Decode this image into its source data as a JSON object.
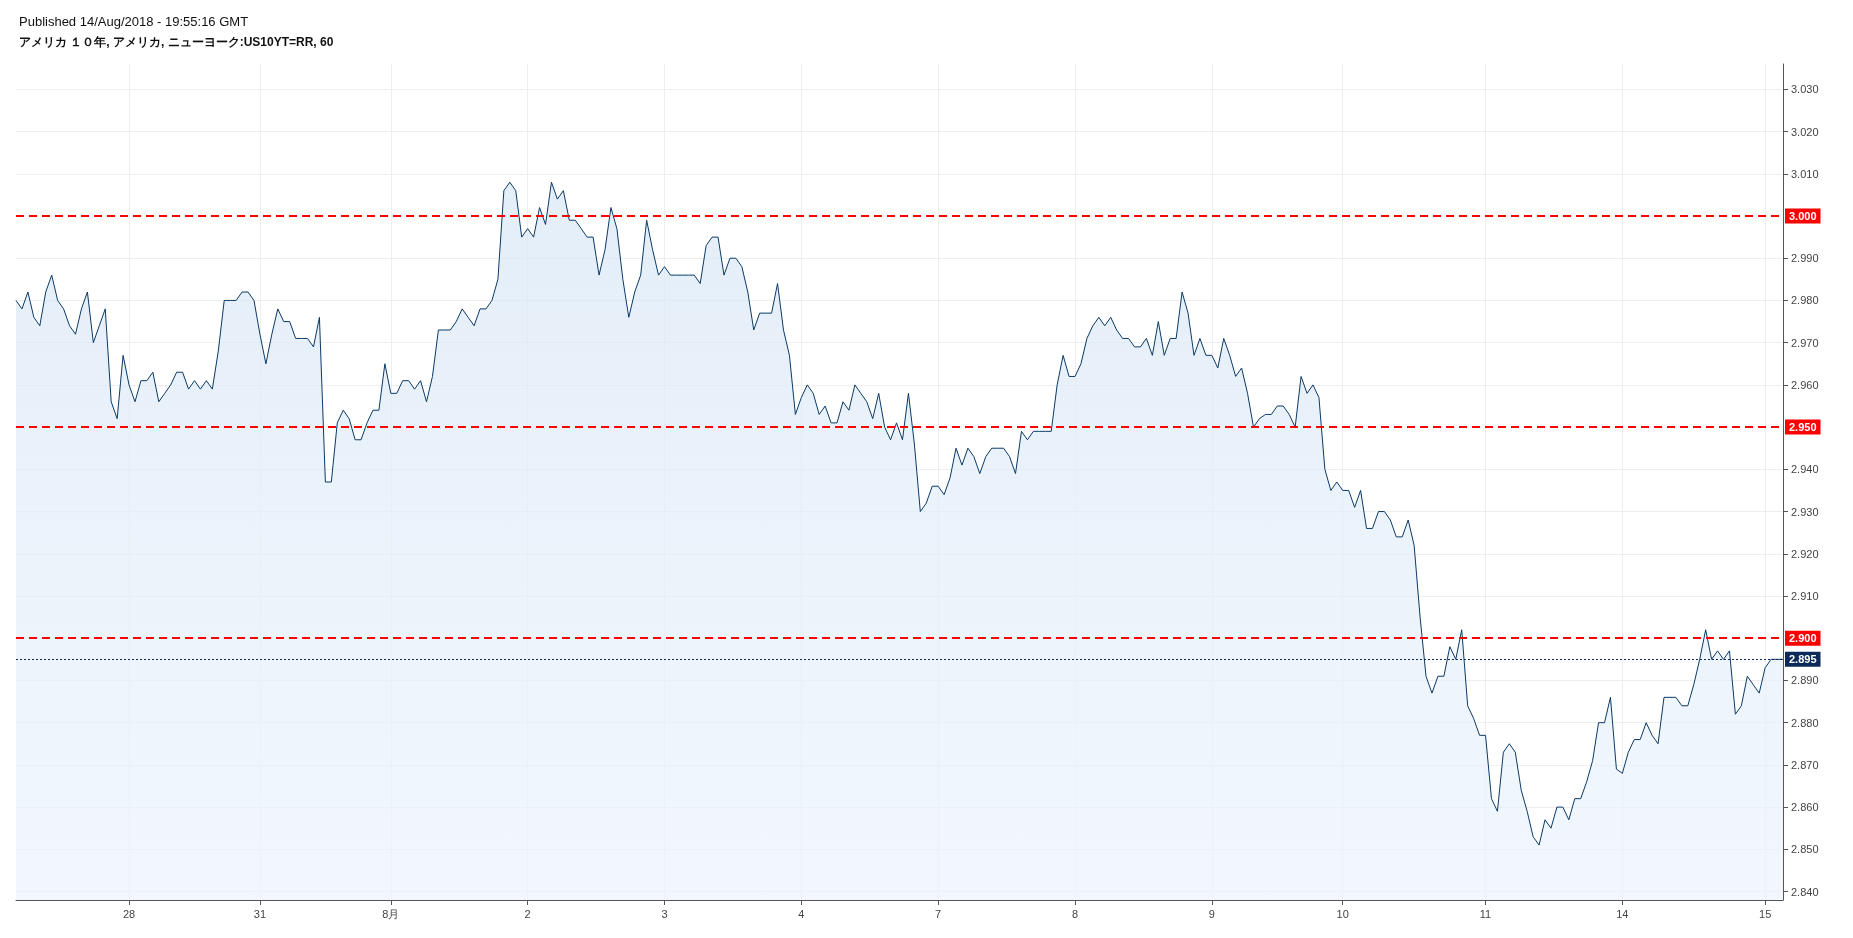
{
  "chart_data": {
    "type": "area",
    "title": "Published 14/Aug/2018 - 19:55:16 GMT",
    "subtitle": "アメリカ １０年, アメリカ, ニューヨーク:US10YT=RR, 60",
    "series": [
      {
        "color": "#0b3a66",
        "values": [
          2.98,
          2.978,
          2.982,
          2.976,
          2.974,
          2.982,
          2.986,
          2.98,
          2.978,
          2.974,
          2.972,
          2.978,
          2.982,
          2.97,
          2.974,
          2.978,
          2.956,
          2.952,
          2.967,
          2.96,
          2.956,
          2.961,
          2.961,
          2.963,
          2.956,
          2.958,
          2.96,
          2.963,
          2.963,
          2.959,
          2.961,
          2.959,
          2.961,
          2.959,
          2.968,
          2.98,
          2.98,
          2.98,
          2.982,
          2.982,
          2.98,
          2.972,
          2.965,
          2.972,
          2.978,
          2.975,
          2.975,
          2.971,
          2.971,
          2.971,
          2.969,
          2.976,
          2.937,
          2.937,
          2.951,
          2.954,
          2.952,
          2.947,
          2.947,
          2.951,
          2.954,
          2.954,
          2.965,
          2.958,
          2.958,
          2.961,
          2.961,
          2.959,
          2.961,
          2.956,
          2.962,
          2.973,
          2.973,
          2.973,
          2.975,
          2.978,
          2.976,
          2.974,
          2.978,
          2.978,
          2.98,
          2.985,
          3.006,
          3.008,
          3.006,
          2.995,
          2.997,
          2.995,
          3.002,
          2.998,
          3.008,
          3.004,
          3.006,
          2.999,
          2.999,
          2.997,
          2.995,
          2.995,
          2.986,
          2.992,
          3.002,
          2.997,
          2.985,
          2.976,
          2.982,
          2.986,
          2.999,
          2.992,
          2.986,
          2.988,
          2.986,
          2.986,
          2.986,
          2.986,
          2.986,
          2.984,
          2.993,
          2.995,
          2.995,
          2.986,
          2.99,
          2.99,
          2.988,
          2.982,
          2.973,
          2.977,
          2.977,
          2.977,
          2.984,
          2.973,
          2.967,
          2.953,
          2.957,
          2.96,
          2.958,
          2.953,
          2.955,
          2.951,
          2.951,
          2.956,
          2.954,
          2.96,
          2.958,
          2.956,
          2.952,
          2.958,
          2.95,
          2.947,
          2.951,
          2.947,
          2.958,
          2.946,
          2.93,
          2.932,
          2.936,
          2.936,
          2.934,
          2.938,
          2.945,
          2.941,
          2.945,
          2.943,
          2.939,
          2.943,
          2.945,
          2.945,
          2.945,
          2.943,
          2.939,
          2.949,
          2.947,
          2.949,
          2.949,
          2.949,
          2.949,
          2.96,
          2.967,
          2.962,
          2.962,
          2.965,
          2.971,
          2.974,
          2.976,
          2.974,
          2.976,
          2.973,
          2.971,
          2.971,
          2.969,
          2.969,
          2.971,
          2.967,
          2.975,
          2.967,
          2.971,
          2.971,
          2.982,
          2.977,
          2.967,
          2.971,
          2.967,
          2.967,
          2.964,
          2.971,
          2.967,
          2.962,
          2.964,
          2.958,
          2.95,
          2.952,
          2.953,
          2.953,
          2.955,
          2.955,
          2.953,
          2.95,
          2.962,
          2.958,
          2.96,
          2.957,
          2.94,
          2.935,
          2.937,
          2.935,
          2.935,
          2.931,
          2.935,
          2.926,
          2.926,
          2.93,
          2.93,
          2.928,
          2.924,
          2.924,
          2.928,
          2.922,
          2.905,
          2.891,
          2.887,
          2.891,
          2.891,
          2.898,
          2.895,
          2.902,
          2.884,
          2.881,
          2.877,
          2.877,
          2.862,
          2.859,
          2.873,
          2.875,
          2.873,
          2.864,
          2.859,
          2.853,
          2.851,
          2.857,
          2.855,
          2.86,
          2.86,
          2.857,
          2.862,
          2.862,
          2.866,
          2.871,
          2.88,
          2.88,
          2.886,
          2.869,
          2.868,
          2.873,
          2.876,
          2.876,
          2.88,
          2.877,
          2.875,
          2.886,
          2.886,
          2.886,
          2.884,
          2.884,
          2.889,
          2.895,
          2.902,
          2.895,
          2.897,
          2.895,
          2.897,
          2.882,
          2.884,
          2.891,
          2.889,
          2.887,
          2.893,
          2.895,
          2.895,
          2.895
        ]
      }
    ],
    "categories": [
      null,
      null,
      null,
      null,
      null,
      null,
      null,
      null,
      null,
      null,
      null,
      null,
      null,
      null,
      null,
      null,
      null,
      null,
      null,
      "28",
      null,
      null,
      null,
      null,
      null,
      null,
      null,
      null,
      null,
      null,
      null,
      null,
      null,
      null,
      null,
      null,
      null,
      null,
      null,
      null,
      null,
      "31",
      null,
      null,
      null,
      null,
      null,
      null,
      null,
      null,
      null,
      null,
      null,
      null,
      null,
      null,
      null,
      null,
      null,
      null,
      null,
      null,
      null,
      "8月",
      null,
      null,
      null,
      null,
      null,
      null,
      null,
      null,
      null,
      null,
      null,
      null,
      null,
      null,
      null,
      null,
      null,
      null,
      null,
      null,
      null,
      null,
      "2",
      null,
      null,
      null,
      null,
      null,
      null,
      null,
      null,
      null,
      null,
      null,
      null,
      null,
      null,
      null,
      null,
      null,
      null,
      null,
      null,
      null,
      null,
      "3",
      null,
      null,
      null,
      null,
      null,
      null,
      null,
      null,
      null,
      null,
      null,
      null,
      null,
      null,
      null,
      null,
      null,
      null,
      null,
      null,
      null,
      null,
      "4",
      null,
      null,
      null,
      null,
      null,
      null,
      null,
      null,
      null,
      null,
      null,
      null,
      null,
      null,
      null,
      null,
      null,
      null,
      null,
      null,
      null,
      null,
      "7",
      null,
      null,
      null,
      null,
      null,
      null,
      null,
      null,
      null,
      null,
      null,
      null,
      null,
      null,
      null,
      null,
      null,
      null,
      null,
      null,
      null,
      null,
      "8",
      null,
      null,
      null,
      null,
      null,
      null,
      null,
      null,
      null,
      null,
      null,
      null,
      null,
      null,
      null,
      null,
      null,
      null,
      null,
      null,
      null,
      null,
      "9",
      null,
      null,
      null,
      null,
      null,
      null,
      null,
      null,
      null,
      null,
      null,
      null,
      null,
      null,
      null,
      null,
      null,
      null,
      null,
      null,
      null,
      "10",
      null,
      null,
      null,
      null,
      null,
      null,
      null,
      null,
      null,
      null,
      null,
      null,
      null,
      null,
      null,
      null,
      null,
      null,
      null,
      null,
      null,
      null,
      null,
      "11",
      null,
      null,
      null,
      null,
      null,
      null,
      null,
      null,
      null,
      null,
      null,
      null,
      null,
      null,
      null,
      null,
      null,
      null,
      null,
      null,
      null,
      null,
      "14",
      null,
      null,
      null,
      null,
      null,
      null,
      null,
      null,
      null,
      null,
      null,
      null,
      null,
      null,
      null,
      null,
      null,
      null,
      null,
      null,
      null,
      null,
      null,
      "15",
      null,
      null,
      null
    ],
    "ylim": [
      2.838,
      3.036
    ],
    "yticks": [
      {
        "value": 2.84,
        "label": "2.840"
      },
      {
        "value": 2.85,
        "label": "2.850"
      },
      {
        "value": 2.86,
        "label": "2.860"
      },
      {
        "value": 2.87,
        "label": "2.870"
      },
      {
        "value": 2.88,
        "label": "2.880"
      },
      {
        "value": 2.89,
        "label": "2.890"
      },
      {
        "value": 2.91,
        "label": "2.910"
      },
      {
        "value": 2.92,
        "label": "2.920"
      },
      {
        "value": 2.93,
        "label": "2.930"
      },
      {
        "value": 2.94,
        "label": "2.940"
      },
      {
        "value": 2.96,
        "label": "2.960"
      },
      {
        "value": 2.97,
        "label": "2.970"
      },
      {
        "value": 2.98,
        "label": "2.980"
      },
      {
        "value": 2.99,
        "label": "2.990"
      },
      {
        "value": 3.01,
        "label": "3.010"
      },
      {
        "value": 3.02,
        "label": "3.020"
      },
      {
        "value": 3.03,
        "label": "3.030"
      }
    ],
    "ref_lines": [
      {
        "axis": "y",
        "value": 3.0,
        "label": "3.000",
        "color": "#ff0000",
        "line_style": "dashed"
      },
      {
        "axis": "y",
        "value": 2.95,
        "label": "2.950",
        "color": "#ff0000",
        "line_style": "dashed"
      },
      {
        "axis": "y",
        "value": 2.9,
        "label": "2.900",
        "color": "#ff0000",
        "line_style": "dashed"
      },
      {
        "axis": "y",
        "value": 2.895,
        "label": "2.895",
        "color": "#0b2a5a",
        "line_style": "dotted"
      }
    ],
    "grid": true
  }
}
